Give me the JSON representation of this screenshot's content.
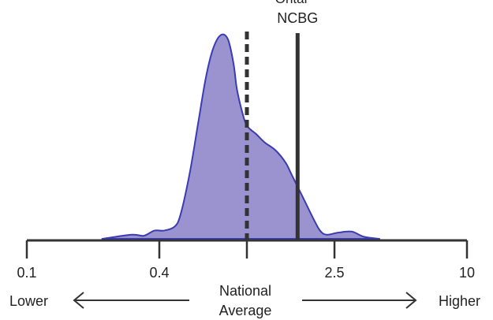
{
  "chart_data": {
    "type": "area",
    "title": "",
    "xlabel": "",
    "ylabel": "",
    "x_scale": "log",
    "xlim": [
      0.1,
      10
    ],
    "ylim": [
      0,
      1
    ],
    "grid": false,
    "legend": "none",
    "tick_values": [
      0.1,
      0.4,
      2.5,
      10
    ],
    "tick_labels": [
      "0.1",
      "0.4",
      "2.5",
      "10"
    ],
    "curve": {
      "x": [
        0.22,
        0.3,
        0.34,
        0.38,
        0.42,
        0.47,
        0.5,
        0.55,
        0.6,
        0.65,
        0.7,
        0.76,
        0.82,
        0.87,
        0.9,
        0.95,
        1.0,
        1.1,
        1.2,
        1.35,
        1.5,
        1.6,
        1.8,
        2.0,
        2.15,
        2.3,
        2.6,
        3.0,
        3.4,
        4.0
      ],
      "y": [
        0.0,
        0.02,
        0.015,
        0.04,
        0.04,
        0.06,
        0.12,
        0.32,
        0.56,
        0.78,
        0.92,
        0.99,
        0.97,
        0.85,
        0.73,
        0.62,
        0.55,
        0.51,
        0.47,
        0.43,
        0.37,
        0.31,
        0.2,
        0.1,
        0.04,
        0.02,
        0.03,
        0.035,
        0.01,
        0.0
      ]
    },
    "reference_lines": [
      {
        "x": 1.0,
        "style": "dashed",
        "label": ""
      },
      {
        "x": 1.7,
        "style": "solid",
        "label": "NCBG"
      }
    ],
    "annotations": {
      "top_cut_text": "Ontar",
      "lower": "Lower",
      "higher": "Higher",
      "center_line1": "National",
      "center_line2": "Average"
    },
    "colors": {
      "fill": "#9a93d0",
      "stroke": "#3b3bb3",
      "line": "#333333"
    }
  }
}
